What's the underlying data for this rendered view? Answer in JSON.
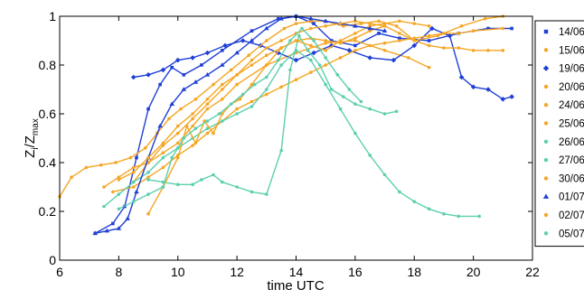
{
  "chart_data": {
    "type": "line",
    "xlabel": "time UTC",
    "ylabel": "Z_i/Z_max",
    "ylabel_main": "Z",
    "ylabel_sub1": "i",
    "ylabel_sep": "/Z",
    "ylabel_sub2": "max",
    "xlim": [
      6,
      22
    ],
    "ylim": [
      0,
      1
    ],
    "xticks": [
      6,
      8,
      10,
      12,
      14,
      16,
      18,
      20,
      22
    ],
    "yticks": [
      0,
      0.2,
      0.4,
      0.6,
      0.8,
      1
    ],
    "ytick_labels": [
      "0",
      "0.2",
      "0.4",
      "0.6",
      "0.8",
      "1"
    ],
    "grid": false,
    "legend_position": "right",
    "colors": {
      "blue": "#1f3fd6",
      "orange": "#f5a623",
      "teal": "#5ccfae"
    },
    "series": [
      {
        "name": "14/06",
        "color": "#1f3fd6",
        "marker": "square",
        "x": [
          7.2,
          7.8,
          8.2,
          8.6,
          9.0,
          9.4,
          9.8,
          10.2,
          10.8,
          11.5,
          12.5,
          13.4,
          14.0,
          14.6,
          15.2,
          16.0,
          16.8,
          17.5,
          18.5,
          19.5,
          20.5,
          21.3
        ],
        "y": [
          0.11,
          0.15,
          0.22,
          0.42,
          0.62,
          0.72,
          0.79,
          0.76,
          0.8,
          0.86,
          0.94,
          0.99,
          1.0,
          0.97,
          0.9,
          0.88,
          0.93,
          0.91,
          0.9,
          0.93,
          0.95,
          0.95
        ]
      },
      {
        "name": "15/06",
        "color": "#f5a623",
        "marker": "circle",
        "x": [
          7.5,
          8.0,
          8.5,
          9.0,
          9.5,
          10.0,
          10.5,
          11.0,
          11.5,
          12.0,
          13.0,
          14.0,
          15.0,
          16.0,
          17.0,
          17.8,
          18.5
        ],
        "y": [
          0.3,
          0.34,
          0.38,
          0.4,
          0.44,
          0.48,
          0.55,
          0.62,
          0.66,
          0.72,
          0.8,
          0.85,
          0.89,
          0.9,
          0.86,
          0.83,
          0.79
        ]
      },
      {
        "name": "19/06",
        "color": "#1f3fd6",
        "marker": "diamond",
        "x": [
          8.5,
          9.0,
          9.5,
          10.0,
          10.5,
          11.0,
          11.6,
          12.2,
          12.8,
          13.4,
          14.0,
          14.6,
          15.2,
          15.8,
          16.5,
          17.3,
          18.0,
          18.6,
          19.2,
          19.6,
          20.0,
          20.5,
          21.0,
          21.3
        ],
        "y": [
          0.75,
          0.76,
          0.78,
          0.82,
          0.83,
          0.85,
          0.88,
          0.9,
          0.88,
          0.85,
          0.82,
          0.85,
          0.88,
          0.86,
          0.83,
          0.82,
          0.88,
          0.95,
          0.92,
          0.75,
          0.71,
          0.7,
          0.66,
          0.67
        ]
      },
      {
        "name": "20/06",
        "color": "#f5a623",
        "marker": "circle",
        "x": [
          7.8,
          8.5,
          9.0,
          9.5,
          10.0,
          10.5,
          11.0,
          11.5,
          12.0,
          12.5,
          13.0,
          13.5,
          14.0,
          14.5,
          15.0,
          15.5,
          16.0,
          16.5,
          17.0,
          17.5,
          18.0,
          18.5,
          19.0,
          19.5,
          20.0,
          21.0
        ],
        "y": [
          0.28,
          0.3,
          0.34,
          0.38,
          0.43,
          0.47,
          0.52,
          0.57,
          0.62,
          0.65,
          0.68,
          0.71,
          0.74,
          0.77,
          0.8,
          0.83,
          0.86,
          0.88,
          0.89,
          0.9,
          0.91,
          0.92,
          0.93,
          0.93,
          0.94,
          0.95
        ]
      },
      {
        "name": "24/06",
        "color": "#f5a623",
        "marker": "circle",
        "x": [
          8.5,
          9.0,
          9.5,
          10.0,
          10.5,
          11.0,
          11.5,
          12.0,
          12.5,
          13.0,
          13.5,
          14.0,
          14.5,
          15.0,
          15.5,
          16.0,
          16.5,
          17.0
        ],
        "y": [
          0.32,
          0.4,
          0.47,
          0.52,
          0.58,
          0.64,
          0.7,
          0.76,
          0.8,
          0.84,
          0.87,
          0.9,
          0.91,
          0.9,
          0.89,
          0.91,
          0.94,
          0.96
        ]
      },
      {
        "name": "25/06",
        "color": "#f5a623",
        "marker": "circle",
        "x": [
          6.0,
          6.4,
          6.9,
          7.4,
          7.9,
          8.4,
          8.9,
          9.3,
          9.7,
          10.1,
          10.6,
          11.2,
          11.8,
          12.4,
          13.0,
          13.6,
          14.0,
          14.5,
          15.0,
          15.6,
          16.2,
          16.8,
          17.4,
          18.0,
          18.8,
          19.6,
          20.4,
          21.0
        ],
        "y": [
          0.26,
          0.34,
          0.38,
          0.39,
          0.4,
          0.42,
          0.46,
          0.52,
          0.58,
          0.62,
          0.66,
          0.72,
          0.78,
          0.84,
          0.9,
          0.95,
          0.97,
          0.98,
          0.98,
          0.96,
          0.97,
          0.98,
          0.96,
          0.9,
          0.92,
          0.96,
          0.99,
          1.0
        ]
      },
      {
        "name": "26/06",
        "color": "#5ccfae",
        "marker": "circle",
        "x": [
          9.0,
          9.5,
          10.0,
          10.5,
          10.8,
          11.2,
          11.5,
          12.0,
          12.5,
          13.0,
          13.5,
          13.8,
          14.1,
          14.4,
          14.8,
          15.2,
          15.6,
          16.0,
          16.5,
          17.0,
          17.4
        ],
        "y": [
          0.33,
          0.32,
          0.31,
          0.31,
          0.33,
          0.35,
          0.32,
          0.3,
          0.28,
          0.27,
          0.45,
          0.78,
          0.92,
          0.86,
          0.8,
          0.7,
          0.67,
          0.64,
          0.62,
          0.6,
          0.61
        ]
      },
      {
        "name": "27/06",
        "color": "#5ccfae",
        "marker": "circle",
        "x": [
          7.5,
          8.0,
          8.5,
          9.0,
          9.5,
          10.0,
          10.5,
          11.0,
          11.5,
          12.0,
          12.5,
          13.0,
          13.5,
          14.0,
          14.5,
          15.0,
          15.5,
          16.0,
          16.5,
          17.0,
          17.5,
          18.0,
          18.5,
          19.0,
          19.5,
          20.2
        ],
        "y": [
          0.22,
          0.27,
          0.32,
          0.36,
          0.42,
          0.46,
          0.5,
          0.54,
          0.57,
          0.6,
          0.63,
          0.7,
          0.8,
          0.86,
          0.82,
          0.72,
          0.62,
          0.52,
          0.43,
          0.35,
          0.28,
          0.24,
          0.21,
          0.19,
          0.18,
          0.18
        ]
      },
      {
        "name": "30/06",
        "color": "#f5a623",
        "marker": "circle",
        "x": [
          9.0,
          9.5,
          10.0,
          10.3,
          10.6,
          10.9,
          11.2,
          11.5,
          11.8,
          12.1,
          12.5,
          13.0,
          13.5,
          14.0,
          14.5,
          15.0,
          15.5,
          16.0,
          16.5,
          17.0,
          17.5,
          18.0,
          18.5
        ],
        "y": [
          0.19,
          0.3,
          0.42,
          0.55,
          0.48,
          0.57,
          0.52,
          0.6,
          0.64,
          0.66,
          0.72,
          0.8,
          0.87,
          0.9,
          0.88,
          0.86,
          0.9,
          0.93,
          0.96,
          0.97,
          0.98,
          0.97,
          0.96
        ]
      },
      {
        "name": "01/07",
        "color": "#1f3fd6",
        "marker": "triangle",
        "x": [
          7.2,
          7.6,
          8.0,
          8.3,
          8.6,
          9.0,
          9.4,
          9.8,
          10.2,
          10.6,
          11.0,
          11.5,
          12.0,
          12.5,
          13.0,
          13.5,
          14.0,
          14.5,
          15.0,
          15.5,
          16.0,
          16.5,
          17.0
        ],
        "y": [
          0.11,
          0.12,
          0.13,
          0.17,
          0.28,
          0.42,
          0.55,
          0.64,
          0.7,
          0.73,
          0.76,
          0.8,
          0.85,
          0.9,
          0.95,
          0.99,
          1.0,
          0.99,
          0.98,
          0.97,
          0.96,
          0.95,
          0.94
        ]
      },
      {
        "name": "02/07",
        "color": "#f5a623",
        "marker": "circle",
        "x": [
          8.0,
          8.5,
          9.0,
          9.5,
          10.0,
          10.5,
          11.0,
          11.5,
          12.0,
          12.5,
          13.0,
          13.5,
          14.0,
          14.5,
          15.0,
          15.5,
          16.0,
          16.5,
          17.0,
          17.5,
          18.0,
          18.5,
          19.0,
          19.5,
          20.0,
          20.5,
          21.0
        ],
        "y": [
          0.33,
          0.36,
          0.42,
          0.48,
          0.55,
          0.6,
          0.66,
          0.72,
          0.76,
          0.82,
          0.87,
          0.9,
          0.93,
          0.95,
          0.96,
          0.97,
          0.98,
          0.97,
          0.96,
          0.93,
          0.9,
          0.88,
          0.87,
          0.87,
          0.86,
          0.86,
          0.86
        ]
      },
      {
        "name": "05/07",
        "color": "#5ccfae",
        "marker": "circle",
        "x": [
          8.0,
          8.5,
          9.0,
          9.5,
          9.8,
          10.2,
          10.6,
          11.0,
          11.4,
          11.8,
          12.2,
          12.6,
          13.0,
          13.4,
          13.8,
          14.2,
          14.6,
          15.0,
          15.4,
          15.8,
          16.2
        ],
        "y": [
          0.21,
          0.24,
          0.27,
          0.3,
          0.42,
          0.5,
          0.54,
          0.57,
          0.6,
          0.64,
          0.68,
          0.72,
          0.75,
          0.82,
          0.9,
          0.95,
          0.9,
          0.83,
          0.76,
          0.7,
          0.65
        ]
      }
    ]
  }
}
